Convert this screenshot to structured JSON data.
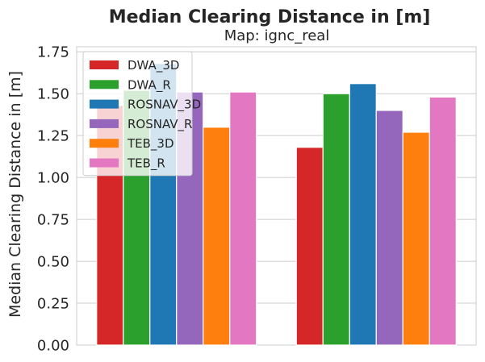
{
  "chart_data": {
    "type": "bar",
    "title": "Median Clearing Distance in [m]",
    "subtitle": "Map: ignc_real",
    "ylabel": "Median Clearing Distance in [m]",
    "xlabel": "",
    "categories": [
      "",
      ""
    ],
    "ylim": [
      0,
      1.78
    ],
    "yticks": [
      0.0,
      0.25,
      0.5,
      0.75,
      1.0,
      1.25,
      1.5,
      1.75
    ],
    "ytick_labels": [
      "0.00",
      "0.25",
      "0.50",
      "0.75",
      "1.00",
      "1.25",
      "1.50",
      "1.75"
    ],
    "grid": true,
    "legend_position": "top-left",
    "series": [
      {
        "name": "DWA_3D",
        "color": "#d62728",
        "values": [
          1.43,
          1.18
        ]
      },
      {
        "name": "DWA_R",
        "color": "#2ca02c",
        "values": [
          1.52,
          1.5
        ]
      },
      {
        "name": "ROSNAV_3D",
        "color": "#1f77b4",
        "values": [
          1.68,
          1.56
        ]
      },
      {
        "name": "ROSNAV_R",
        "color": "#9467bd",
        "values": [
          1.51,
          1.4
        ]
      },
      {
        "name": "TEB_3D",
        "color": "#ff7f0e",
        "values": [
          1.3,
          1.27
        ]
      },
      {
        "name": "TEB_R",
        "color": "#e377c2",
        "values": [
          1.51,
          1.48
        ]
      }
    ]
  }
}
